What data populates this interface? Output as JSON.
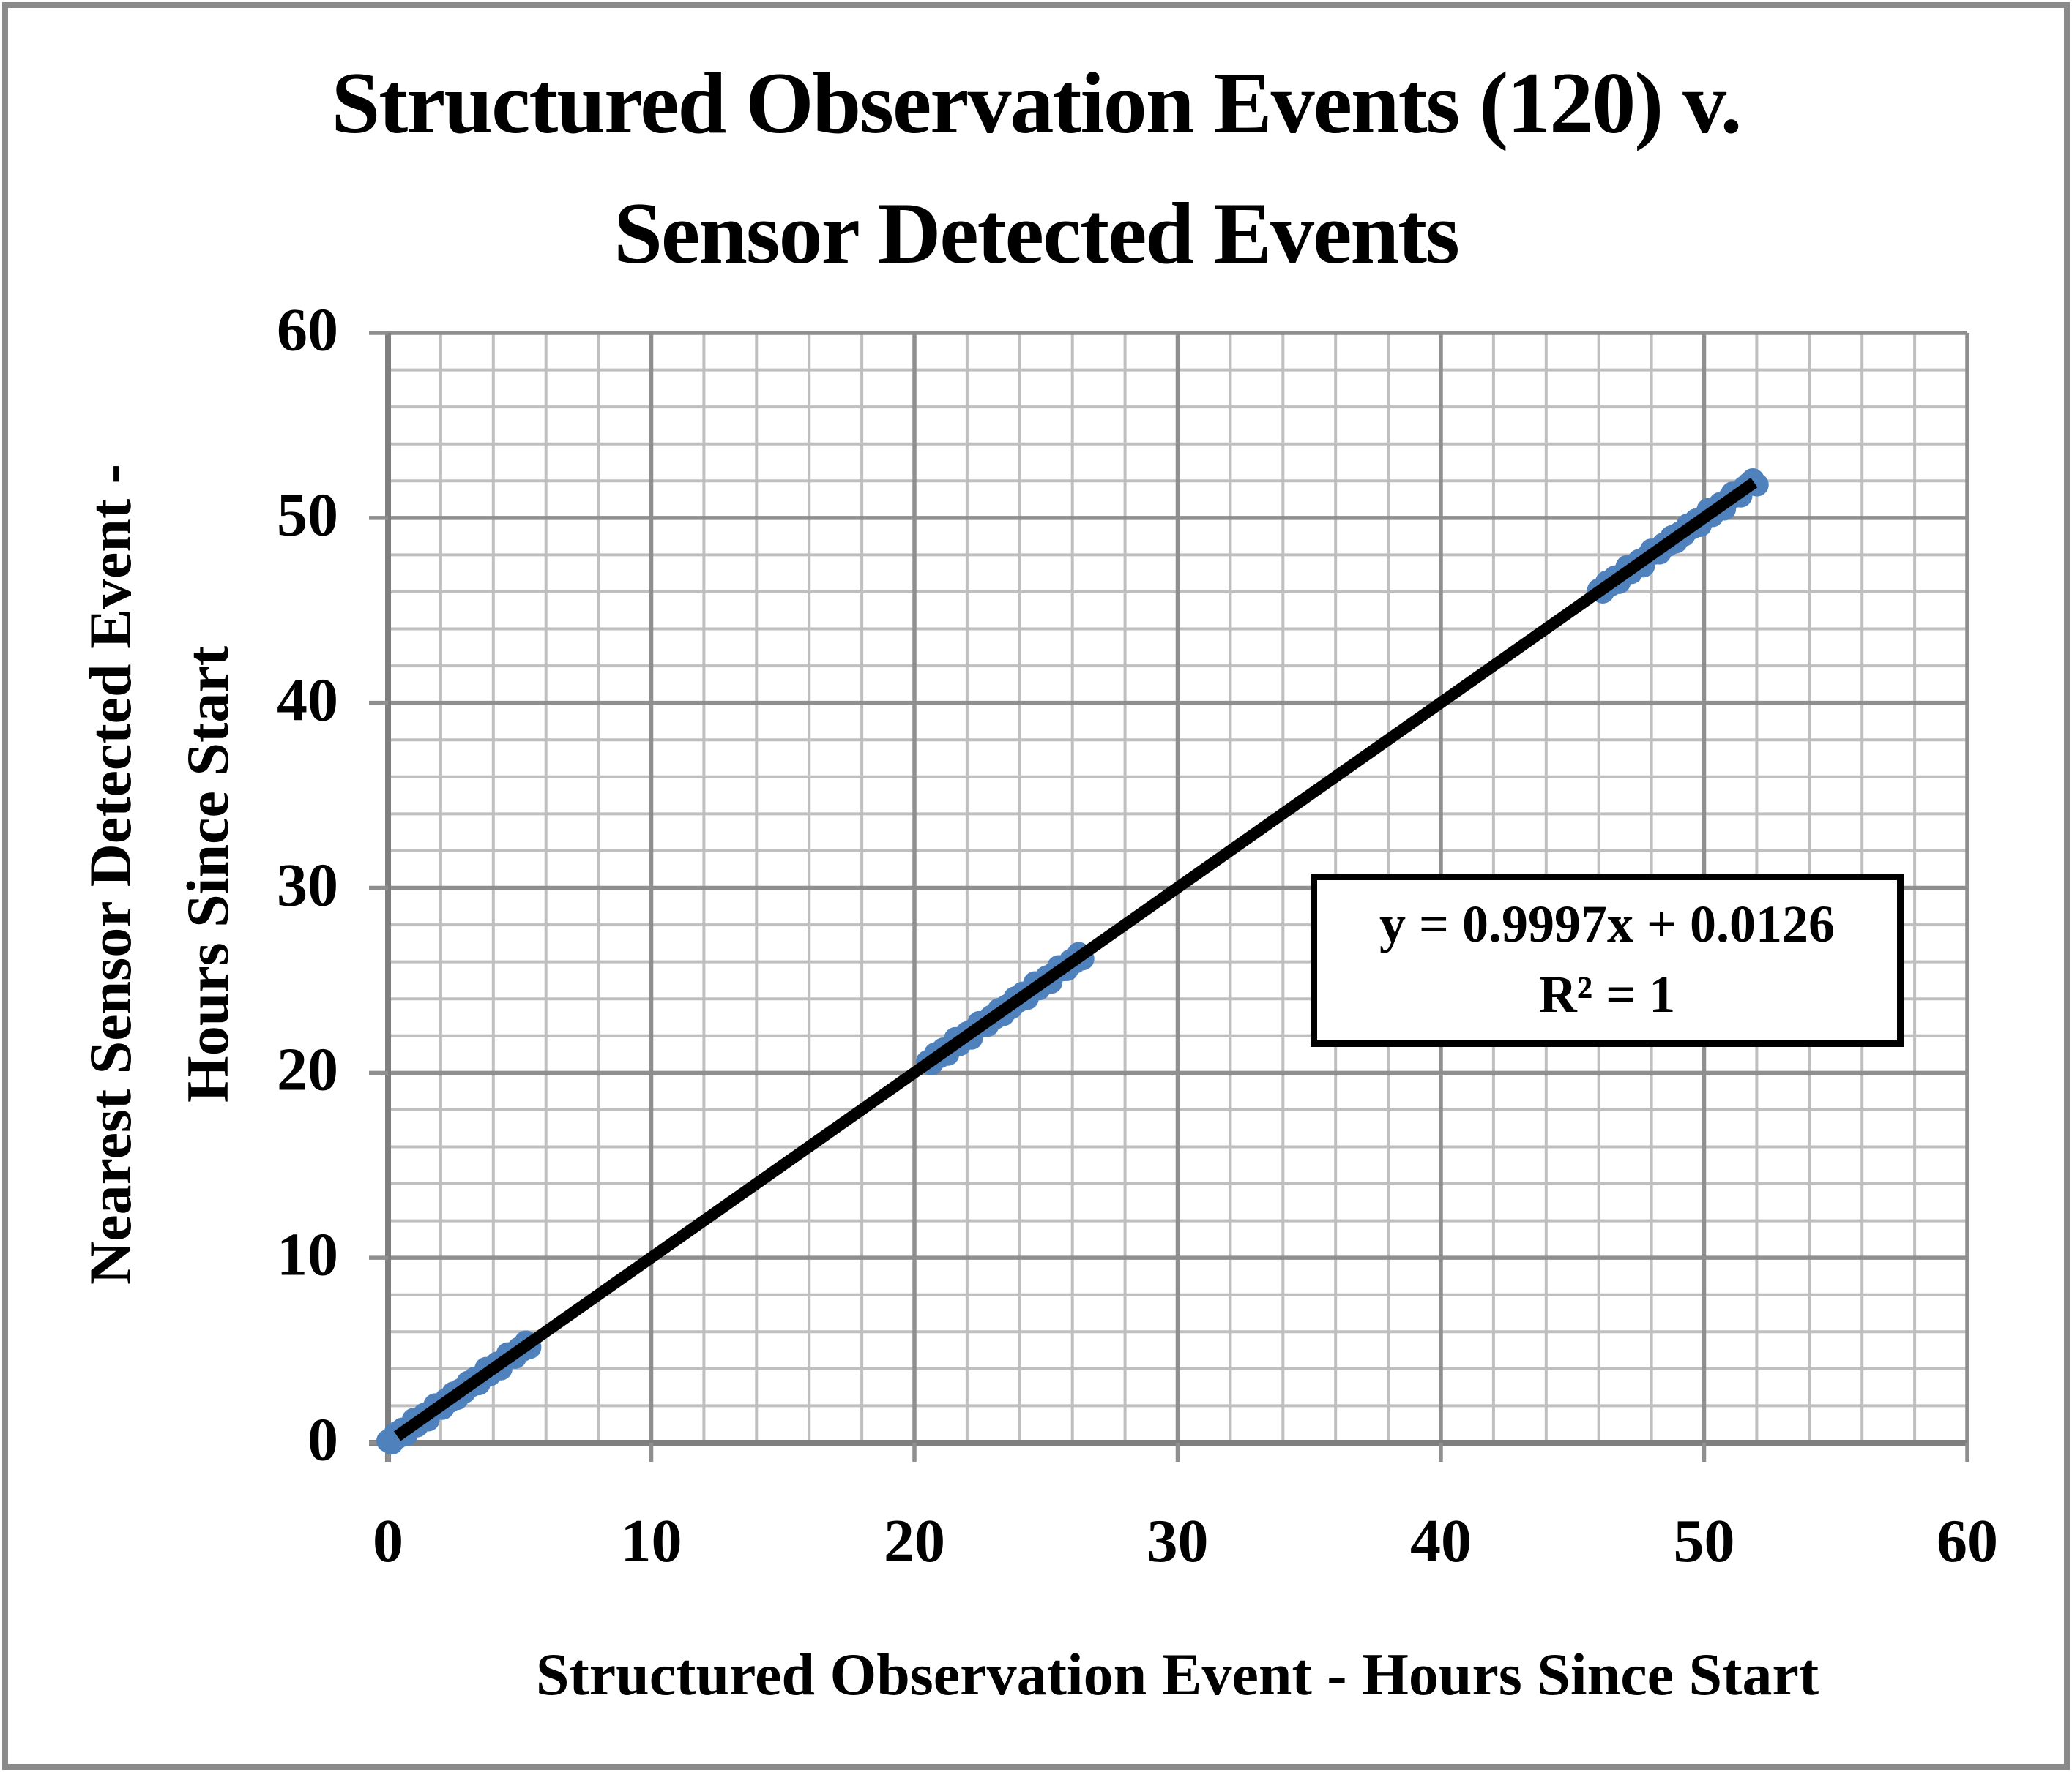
{
  "page": {
    "background_color": "#ffffff",
    "frame_color": "#8a8a8a"
  },
  "chart_data": {
    "type": "scatter",
    "title_lines": [
      "Structured Observation Events (120) v.",
      "Sensor Detected Events"
    ],
    "xlabel": "Structured Observation Event - Hours Since Start",
    "ylabel_lines": [
      "Nearest Sensor Detected Event -",
      "Hours Since Start"
    ],
    "xlim": [
      0,
      60
    ],
    "ylim": [
      0,
      60
    ],
    "x_ticks": [
      0,
      10,
      20,
      30,
      40,
      50,
      60
    ],
    "y_ticks": [
      0,
      10,
      20,
      30,
      40,
      50,
      60
    ],
    "minor_step": 2,
    "grid": {
      "minor_color": "#bfbfbf",
      "major_color": "#8f8f8f",
      "axis_color": "#7f7f7f",
      "grid_on": true
    },
    "legend": "none",
    "series": [
      {
        "marker_color": "#4f81bd",
        "marker_shape": "circle",
        "points": [
          [
            0.0,
            0.1
          ],
          [
            0.14,
            -0.01
          ],
          [
            0.28,
            0.5
          ],
          [
            0.41,
            0.33
          ],
          [
            0.55,
            0.73
          ],
          [
            0.69,
            0.44
          ],
          [
            0.83,
            0.88
          ],
          [
            0.97,
            1.25
          ],
          [
            1.1,
            0.92
          ],
          [
            1.24,
            1.24
          ],
          [
            1.38,
            1.53
          ],
          [
            1.52,
            1.24
          ],
          [
            1.66,
            1.74
          ],
          [
            1.79,
            2.04
          ],
          [
            1.93,
            1.88
          ],
          [
            2.07,
            1.87
          ],
          [
            2.21,
            2.33
          ],
          [
            2.35,
            2.25
          ],
          [
            2.48,
            2.68
          ],
          [
            2.62,
            2.4
          ],
          [
            2.76,
            2.86
          ],
          [
            2.9,
            2.75
          ],
          [
            3.04,
            3.26
          ],
          [
            3.17,
            3.09
          ],
          [
            3.31,
            3.49
          ],
          [
            3.45,
            3.2
          ],
          [
            3.59,
            3.64
          ],
          [
            3.73,
            4.01
          ],
          [
            3.86,
            3.68
          ],
          [
            4.0,
            4.0
          ],
          [
            4.14,
            4.29
          ],
          [
            4.28,
            4.0
          ],
          [
            4.42,
            4.5
          ],
          [
            4.55,
            4.8
          ],
          [
            4.69,
            4.64
          ],
          [
            4.83,
            4.63
          ],
          [
            4.97,
            5.09
          ],
          [
            5.11,
            5.01
          ],
          [
            5.24,
            5.44
          ],
          [
            5.38,
            5.16
          ],
          [
            20.5,
            20.6
          ],
          [
            20.65,
            20.5
          ],
          [
            20.8,
            21.02
          ],
          [
            20.95,
            20.87
          ],
          [
            21.1,
            21.28
          ],
          [
            21.26,
            21.01
          ],
          [
            21.41,
            21.46
          ],
          [
            21.56,
            21.84
          ],
          [
            21.71,
            21.53
          ],
          [
            21.86,
            21.86
          ],
          [
            22.01,
            22.16
          ],
          [
            22.16,
            21.88
          ],
          [
            22.31,
            22.39
          ],
          [
            22.46,
            22.71
          ],
          [
            22.61,
            22.56
          ],
          [
            22.77,
            22.57
          ],
          [
            22.92,
            23.04
          ],
          [
            23.07,
            22.97
          ],
          [
            23.22,
            23.42
          ],
          [
            23.37,
            23.15
          ],
          [
            23.52,
            23.62
          ],
          [
            23.67,
            23.52
          ],
          [
            23.82,
            24.04
          ],
          [
            23.97,
            23.89
          ],
          [
            24.12,
            24.3
          ],
          [
            24.28,
            24.03
          ],
          [
            24.43,
            24.48
          ],
          [
            24.58,
            24.86
          ],
          [
            24.73,
            24.55
          ],
          [
            24.88,
            24.88
          ],
          [
            25.03,
            25.18
          ],
          [
            25.18,
            24.9
          ],
          [
            25.33,
            25.41
          ],
          [
            25.48,
            25.73
          ],
          [
            25.63,
            25.58
          ],
          [
            25.79,
            25.59
          ],
          [
            25.94,
            26.06
          ],
          [
            26.09,
            25.99
          ],
          [
            26.24,
            26.44
          ],
          [
            26.39,
            26.17
          ],
          [
            46.0,
            46.1
          ],
          [
            46.15,
            46.0
          ],
          [
            46.31,
            46.53
          ],
          [
            46.46,
            46.38
          ],
          [
            46.62,
            46.8
          ],
          [
            46.77,
            46.52
          ],
          [
            46.92,
            46.97
          ],
          [
            47.08,
            47.36
          ],
          [
            47.23,
            47.05
          ],
          [
            47.39,
            47.39
          ],
          [
            47.54,
            47.69
          ],
          [
            47.69,
            47.41
          ],
          [
            47.85,
            47.93
          ],
          [
            48.0,
            48.25
          ],
          [
            48.16,
            48.11
          ],
          [
            48.31,
            48.11
          ],
          [
            48.46,
            48.58
          ],
          [
            48.62,
            48.52
          ],
          [
            48.77,
            48.97
          ],
          [
            48.93,
            48.71
          ],
          [
            49.08,
            49.18
          ],
          [
            49.23,
            49.08
          ],
          [
            49.39,
            49.61
          ],
          [
            49.54,
            49.46
          ],
          [
            49.7,
            49.88
          ],
          [
            49.85,
            49.6
          ],
          [
            50.0,
            50.05
          ],
          [
            50.16,
            50.44
          ],
          [
            50.31,
            50.13
          ],
          [
            50.47,
            50.47
          ],
          [
            50.62,
            50.77
          ],
          [
            50.77,
            50.49
          ],
          [
            50.93,
            51.01
          ],
          [
            51.08,
            51.33
          ],
          [
            51.24,
            51.19
          ],
          [
            51.39,
            51.19
          ],
          [
            51.54,
            51.66
          ],
          [
            51.7,
            51.85
          ],
          [
            51.85,
            52.05
          ],
          [
            52.01,
            51.79
          ]
        ]
      }
    ],
    "trendline": {
      "color": "#000000",
      "x1": 0.35,
      "y1": 0.36,
      "x2": 51.9,
      "y2": 51.91,
      "slope": 0.9997,
      "intercept": 0.0126,
      "r_squared": 1,
      "equation_label": "y = 0.9997x + 0.0126",
      "r2_label": "R² = 1"
    }
  }
}
